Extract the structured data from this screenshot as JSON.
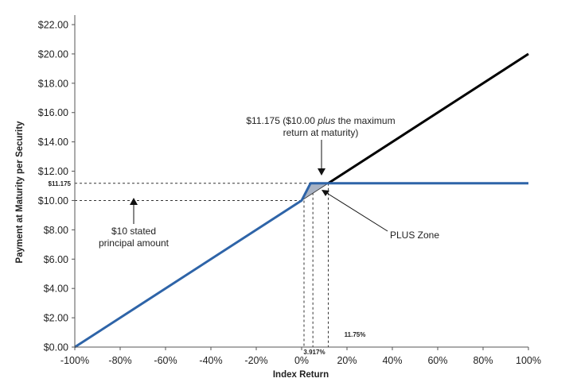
{
  "chart_data": {
    "type": "line",
    "xlabel": "Index Return",
    "ylabel": "Payment at Maturity per Security",
    "xlim": [
      -100,
      100
    ],
    "ylim": [
      0,
      22
    ],
    "x_ticks": [
      "-100%",
      "-80%",
      "-60%",
      "-40%",
      "-20%",
      "0%",
      "20%",
      "40%",
      "60%",
      "80%",
      "100%"
    ],
    "y_ticks": [
      "$0.00",
      "$2.00",
      "$4.00",
      "$6.00",
      "$8.00",
      "$10.00",
      "$12.00",
      "$14.00",
      "$16.00",
      "$18.00",
      "$20.00",
      "$22.00"
    ],
    "series": [
      {
        "color": "#000000",
        "points": [
          [
            11.75,
            11.175
          ],
          [
            100,
            20
          ]
        ]
      },
      {
        "color": "#2e64a8",
        "points": [
          [
            -100,
            0
          ],
          [
            0,
            10
          ],
          [
            3.917,
            11.175
          ],
          [
            100,
            11.175
          ]
        ]
      }
    ],
    "plus_zone_polygon": [
      [
        0,
        10
      ],
      [
        3.917,
        11.175
      ],
      [
        11.75,
        11.175
      ]
    ],
    "reference_values": {
      "max_payment": 11.175,
      "stated_principal": 10,
      "x_cap": 11.75,
      "x_mid": 3.917
    },
    "annotations": {
      "max_line1_a": "$11.175 ($10.00 ",
      "max_line1_italic": "plus",
      "max_line1_b": " the maximum",
      "max_line2": "return at maturity)",
      "principal_line1": "$10 stated",
      "principal_line2": "principal amount",
      "plus_zone": "PLUS Zone",
      "max_value_label": "$11.175",
      "x_mid_label": "3.917%",
      "x_cap_label": "11.75%"
    },
    "colors": {
      "black_line": "#000000",
      "blue_line": "#2e64a8",
      "zone_fill": "#a9b3c4"
    }
  }
}
